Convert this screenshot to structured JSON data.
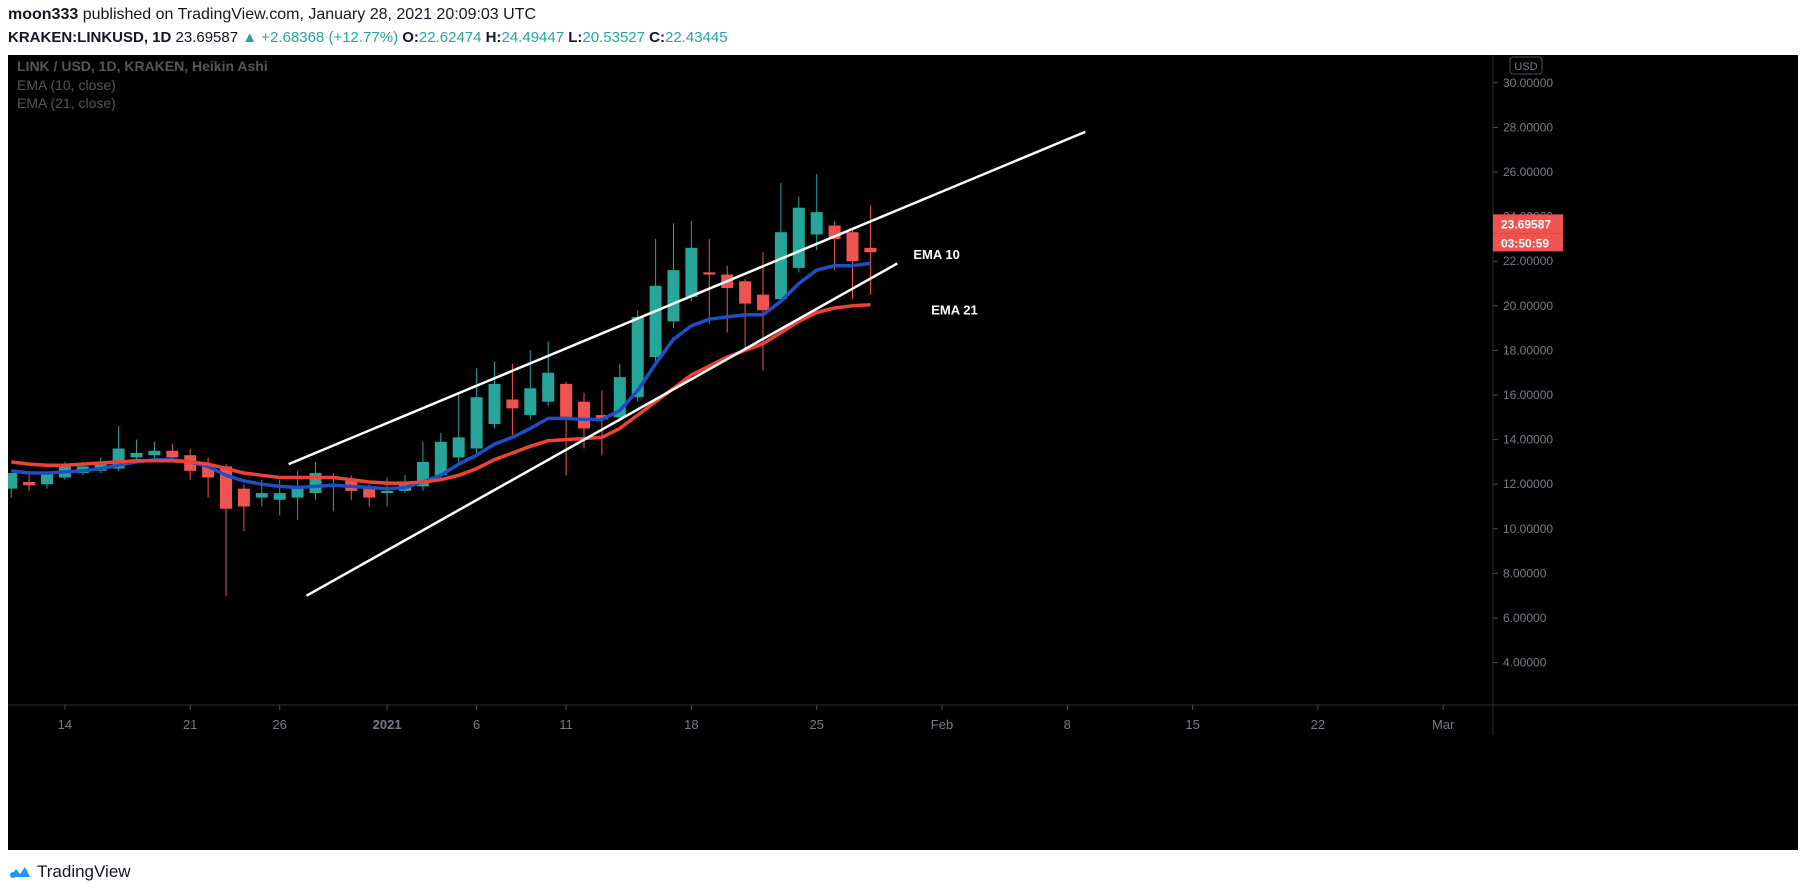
{
  "header": {
    "author": "moon333",
    "published": "published on TradingView.com, January 28, 2021 20:09:03 UTC",
    "symbol": "KRAKEN:LINKUSD, 1D",
    "last": "23.69587",
    "change_arrow": "▲",
    "change": "+2.68368 (+12.77%)",
    "o_label": "O:",
    "o": "22.62474",
    "h_label": "H:",
    "h": "24.49447",
    "l_label": "L:",
    "l": "20.53527",
    "c_label": "C:",
    "c": "22.43445"
  },
  "legend": {
    "title": "LINK / USD, 1D, KRAKEN, Heikin Ashi",
    "ema10": "EMA (10, close)",
    "ema21": "EMA (21, close)"
  },
  "currency": "USD",
  "price_tag": "23.69587",
  "countdown_tag": "03:50:59",
  "footer": {
    "brand": "TradingView"
  },
  "colors": {
    "up": "#26a69a",
    "down": "#ef5350",
    "ema10": "#1e4fc4",
    "ema21": "#ef4136",
    "background": "#000000",
    "channel": "#ffffff"
  },
  "chart_data": {
    "type": "candlestick",
    "title": "LINK / USD, 1D, KRAKEN, Heikin Ashi",
    "xlabel": "",
    "ylabel": "",
    "ylim": [
      2,
      31
    ],
    "y_ticks": [
      "30.00000",
      "28.00000",
      "26.00000",
      "24.00000",
      "22.00000",
      "20.00000",
      "18.00000",
      "16.00000",
      "14.00000",
      "12.00000",
      "10.00000",
      "8.00000",
      "6.00000",
      "4.00000"
    ],
    "x_ticks": [
      {
        "label": "14",
        "day": 0
      },
      {
        "label": "21",
        "day": 7
      },
      {
        "label": "26",
        "day": 12
      },
      {
        "label": "2021",
        "day": 18
      },
      {
        "label": "6",
        "day": 23
      },
      {
        "label": "11",
        "day": 28
      },
      {
        "label": "18",
        "day": 35
      },
      {
        "label": "25",
        "day": 42
      },
      {
        "label": "Feb",
        "day": 49
      },
      {
        "label": "8",
        "day": 56
      },
      {
        "label": "15",
        "day": 63
      },
      {
        "label": "22",
        "day": 70
      },
      {
        "label": "Mar",
        "day": 77
      }
    ],
    "candles": [
      {
        "day": -3,
        "o": 11.8,
        "h": 12.4,
        "l": 11.4,
        "c": 12.5
      },
      {
        "day": -2,
        "o": 12.1,
        "h": 12.6,
        "l": 11.7,
        "c": 11.95
      },
      {
        "day": -1,
        "o": 12.0,
        "h": 12.5,
        "l": 11.8,
        "c": 12.5
      },
      {
        "day": 0,
        "o": 12.3,
        "h": 13.0,
        "l": 12.2,
        "c": 12.8
      },
      {
        "day": 1,
        "o": 12.5,
        "h": 13.0,
        "l": 12.4,
        "c": 12.8
      },
      {
        "day": 2,
        "o": 12.6,
        "h": 13.2,
        "l": 12.5,
        "c": 13.0
      },
      {
        "day": 3,
        "o": 12.7,
        "h": 14.6,
        "l": 12.6,
        "c": 13.6
      },
      {
        "day": 4,
        "o": 13.2,
        "h": 14.0,
        "l": 13.0,
        "c": 13.4
      },
      {
        "day": 5,
        "o": 13.3,
        "h": 13.9,
        "l": 13.1,
        "c": 13.5
      },
      {
        "day": 6,
        "o": 13.5,
        "h": 13.8,
        "l": 13.1,
        "c": 13.2
      },
      {
        "day": 7,
        "o": 13.3,
        "h": 13.6,
        "l": 12.2,
        "c": 12.6
      },
      {
        "day": 8,
        "o": 12.9,
        "h": 13.2,
        "l": 11.4,
        "c": 12.3
      },
      {
        "day": 9,
        "o": 12.8,
        "h": 12.9,
        "l": 7.0,
        "c": 10.9
      },
      {
        "day": 10,
        "o": 11.8,
        "h": 12.0,
        "l": 9.9,
        "c": 11.0
      },
      {
        "day": 11,
        "o": 11.4,
        "h": 12.2,
        "l": 11.0,
        "c": 11.6
      },
      {
        "day": 12,
        "o": 11.3,
        "h": 12.2,
        "l": 10.6,
        "c": 11.6
      },
      {
        "day": 13,
        "o": 11.4,
        "h": 12.6,
        "l": 10.4,
        "c": 11.8
      },
      {
        "day": 14,
        "o": 11.6,
        "h": 13.0,
        "l": 11.3,
        "c": 12.5
      },
      {
        "day": 15,
        "o": 12.0,
        "h": 12.5,
        "l": 10.8,
        "c": 12.0
      },
      {
        "day": 16,
        "o": 12.2,
        "h": 12.4,
        "l": 11.3,
        "c": 11.7
      },
      {
        "day": 17,
        "o": 11.9,
        "h": 12.0,
        "l": 11.0,
        "c": 11.4
      },
      {
        "day": 18,
        "o": 11.6,
        "h": 12.3,
        "l": 11.0,
        "c": 11.7
      },
      {
        "day": 19,
        "o": 11.7,
        "h": 12.4,
        "l": 11.6,
        "c": 12.1
      },
      {
        "day": 20,
        "o": 11.9,
        "h": 13.9,
        "l": 11.7,
        "c": 13.0
      },
      {
        "day": 21,
        "o": 12.4,
        "h": 14.3,
        "l": 12.2,
        "c": 13.9
      },
      {
        "day": 22,
        "o": 13.2,
        "h": 16.1,
        "l": 13.0,
        "c": 14.1
      },
      {
        "day": 23,
        "o": 13.6,
        "h": 17.2,
        "l": 13.4,
        "c": 15.9
      },
      {
        "day": 24,
        "o": 14.7,
        "h": 17.5,
        "l": 14.5,
        "c": 16.5
      },
      {
        "day": 25,
        "o": 15.8,
        "h": 17.4,
        "l": 14.2,
        "c": 15.4
      },
      {
        "day": 26,
        "o": 15.1,
        "h": 18.0,
        "l": 14.9,
        "c": 16.3
      },
      {
        "day": 27,
        "o": 15.7,
        "h": 18.4,
        "l": 15.5,
        "c": 17.0
      },
      {
        "day": 28,
        "o": 16.5,
        "h": 16.6,
        "l": 12.4,
        "c": 15.0
      },
      {
        "day": 29,
        "o": 15.7,
        "h": 16.1,
        "l": 13.6,
        "c": 14.5
      },
      {
        "day": 30,
        "o": 15.1,
        "h": 16.2,
        "l": 13.3,
        "c": 14.9
      },
      {
        "day": 31,
        "o": 15.0,
        "h": 17.4,
        "l": 14.8,
        "c": 16.8
      },
      {
        "day": 32,
        "o": 15.9,
        "h": 19.8,
        "l": 15.7,
        "c": 19.5
      },
      {
        "day": 33,
        "o": 17.7,
        "h": 23.0,
        "l": 17.4,
        "c": 20.9
      },
      {
        "day": 34,
        "o": 19.3,
        "h": 23.7,
        "l": 19.0,
        "c": 21.6
      },
      {
        "day": 35,
        "o": 20.4,
        "h": 23.8,
        "l": 20.2,
        "c": 22.6
      },
      {
        "day": 36,
        "o": 21.5,
        "h": 23.0,
        "l": 19.2,
        "c": 21.4
      },
      {
        "day": 37,
        "o": 21.4,
        "h": 21.8,
        "l": 18.8,
        "c": 20.8
      },
      {
        "day": 38,
        "o": 21.1,
        "h": 21.2,
        "l": 18.0,
        "c": 20.1
      },
      {
        "day": 39,
        "o": 20.5,
        "h": 22.4,
        "l": 17.1,
        "c": 19.8
      },
      {
        "day": 40,
        "o": 20.3,
        "h": 25.5,
        "l": 20.1,
        "c": 23.3
      },
      {
        "day": 41,
        "o": 21.7,
        "h": 24.9,
        "l": 21.5,
        "c": 24.4
      },
      {
        "day": 42,
        "o": 23.2,
        "h": 25.9,
        "l": 22.5,
        "c": 24.2
      },
      {
        "day": 43,
        "o": 23.6,
        "h": 23.8,
        "l": 21.6,
        "c": 23.0
      },
      {
        "day": 44,
        "o": 23.3,
        "h": 23.5,
        "l": 20.3,
        "c": 22.0
      },
      {
        "day": 45,
        "o": 22.6,
        "h": 24.5,
        "l": 20.5,
        "c": 22.4
      }
    ],
    "series": [
      {
        "name": "EMA 10",
        "color": "#1e4fc4",
        "points": [
          [
            -3,
            12.6
          ],
          [
            -2,
            12.5
          ],
          [
            -1,
            12.5
          ],
          [
            0,
            12.55
          ],
          [
            1,
            12.6
          ],
          [
            2,
            12.7
          ],
          [
            3,
            12.85
          ],
          [
            4,
            13.0
          ],
          [
            5,
            13.1
          ],
          [
            6,
            13.1
          ],
          [
            7,
            13.0
          ],
          [
            8,
            12.8
          ],
          [
            9,
            12.4
          ],
          [
            10,
            12.15
          ],
          [
            11,
            12.0
          ],
          [
            12,
            11.9
          ],
          [
            13,
            11.85
          ],
          [
            14,
            11.9
          ],
          [
            15,
            11.95
          ],
          [
            16,
            11.9
          ],
          [
            17,
            11.85
          ],
          [
            18,
            11.8
          ],
          [
            19,
            11.85
          ],
          [
            20,
            12.1
          ],
          [
            21,
            12.4
          ],
          [
            22,
            12.9
          ],
          [
            23,
            13.3
          ],
          [
            24,
            13.8
          ],
          [
            25,
            14.1
          ],
          [
            26,
            14.5
          ],
          [
            27,
            14.95
          ],
          [
            28,
            14.95
          ],
          [
            29,
            14.9
          ],
          [
            30,
            14.9
          ],
          [
            31,
            15.3
          ],
          [
            32,
            16.2
          ],
          [
            33,
            17.4
          ],
          [
            34,
            18.5
          ],
          [
            35,
            19.1
          ],
          [
            36,
            19.4
          ],
          [
            37,
            19.5
          ],
          [
            38,
            19.6
          ],
          [
            39,
            19.6
          ],
          [
            40,
            20.2
          ],
          [
            41,
            21.0
          ],
          [
            42,
            21.6
          ],
          [
            43,
            21.8
          ],
          [
            44,
            21.8
          ],
          [
            45,
            21.9
          ]
        ]
      },
      {
        "name": "EMA 21",
        "color": "#ef4136",
        "points": [
          [
            -3,
            13.0
          ],
          [
            -2,
            12.9
          ],
          [
            -1,
            12.85
          ],
          [
            0,
            12.85
          ],
          [
            1,
            12.9
          ],
          [
            2,
            12.95
          ],
          [
            3,
            13.0
          ],
          [
            4,
            13.05
          ],
          [
            5,
            13.05
          ],
          [
            6,
            13.05
          ],
          [
            7,
            13.0
          ],
          [
            8,
            12.9
          ],
          [
            9,
            12.7
          ],
          [
            10,
            12.5
          ],
          [
            11,
            12.4
          ],
          [
            12,
            12.3
          ],
          [
            13,
            12.3
          ],
          [
            14,
            12.3
          ],
          [
            15,
            12.3
          ],
          [
            16,
            12.2
          ],
          [
            17,
            12.1
          ],
          [
            18,
            12.05
          ],
          [
            19,
            12.05
          ],
          [
            20,
            12.1
          ],
          [
            21,
            12.2
          ],
          [
            22,
            12.4
          ],
          [
            23,
            12.7
          ],
          [
            24,
            13.1
          ],
          [
            25,
            13.4
          ],
          [
            26,
            13.7
          ],
          [
            27,
            13.95
          ],
          [
            28,
            14.0
          ],
          [
            29,
            14.05
          ],
          [
            30,
            14.1
          ],
          [
            31,
            14.5
          ],
          [
            32,
            15.1
          ],
          [
            33,
            15.7
          ],
          [
            34,
            16.3
          ],
          [
            35,
            16.9
          ],
          [
            36,
            17.3
          ],
          [
            37,
            17.7
          ],
          [
            38,
            18.0
          ],
          [
            39,
            18.3
          ],
          [
            40,
            18.8
          ],
          [
            41,
            19.3
          ],
          [
            42,
            19.7
          ],
          [
            43,
            19.9
          ],
          [
            44,
            20.0
          ],
          [
            45,
            20.05
          ]
        ]
      }
    ],
    "annotations": [
      {
        "type": "trendline",
        "name": "channel-upper",
        "from": [
          12.5,
          12.9
        ],
        "to": [
          57,
          27.8
        ]
      },
      {
        "type": "trendline",
        "name": "channel-lower",
        "from": [
          13.5,
          7.0
        ],
        "to": [
          46.5,
          21.9
        ]
      },
      {
        "type": "label",
        "text": "EMA 10",
        "at": [
          47.4,
          22.1
        ]
      },
      {
        "type": "label",
        "text": "EMA 21",
        "at": [
          48.4,
          19.6
        ]
      }
    ]
  }
}
